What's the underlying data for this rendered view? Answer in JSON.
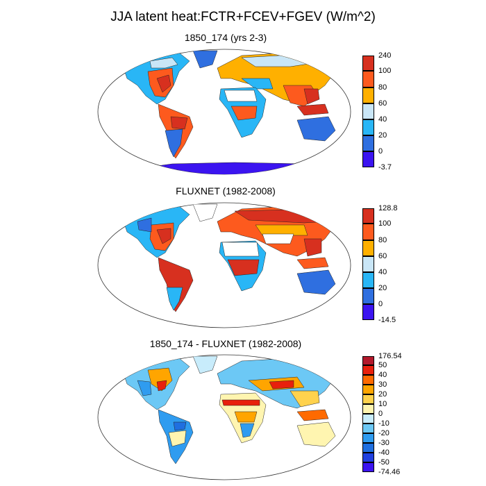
{
  "title": "JJA latent heat:FCTR+FCEV+FGEV (W/m^2)",
  "panels": [
    {
      "title": "1850_174 (yrs 2-3)",
      "colorbar": {
        "labels": [
          "240",
          "100",
          "80",
          "60",
          "40",
          "20",
          "0",
          "-3.7"
        ],
        "colors": [
          "#d7301f",
          "#fd5a1e",
          "#ffb000",
          "#c9e6f7",
          "#29b6f6",
          "#2f6fe0",
          "#3b14f0"
        ]
      }
    },
    {
      "title": "FLUXNET (1982-2008)",
      "colorbar": {
        "labels": [
          "128.8",
          "100",
          "80",
          "60",
          "40",
          "20",
          "0",
          "-14.5"
        ],
        "colors": [
          "#d7301f",
          "#fd5a1e",
          "#ffb000",
          "#c9e6f7",
          "#29b6f6",
          "#2f6fe0",
          "#3b14f0"
        ]
      }
    },
    {
      "title": "1850_174 - FLUXNET (1982-2008)",
      "colorbar": {
        "labels": [
          "176.54",
          "50",
          "40",
          "30",
          "20",
          "10",
          "0",
          "-10",
          "-20",
          "-30",
          "-40",
          "-50",
          "-74.46"
        ],
        "colors": [
          "#b2182b",
          "#e8200c",
          "#ff6a00",
          "#ffa500",
          "#ffd24d",
          "#fff5b0",
          "#c8ecfb",
          "#6cc8f5",
          "#2f9cf0",
          "#1f6fe0",
          "#2040e0",
          "#3b14f0"
        ]
      }
    }
  ]
}
